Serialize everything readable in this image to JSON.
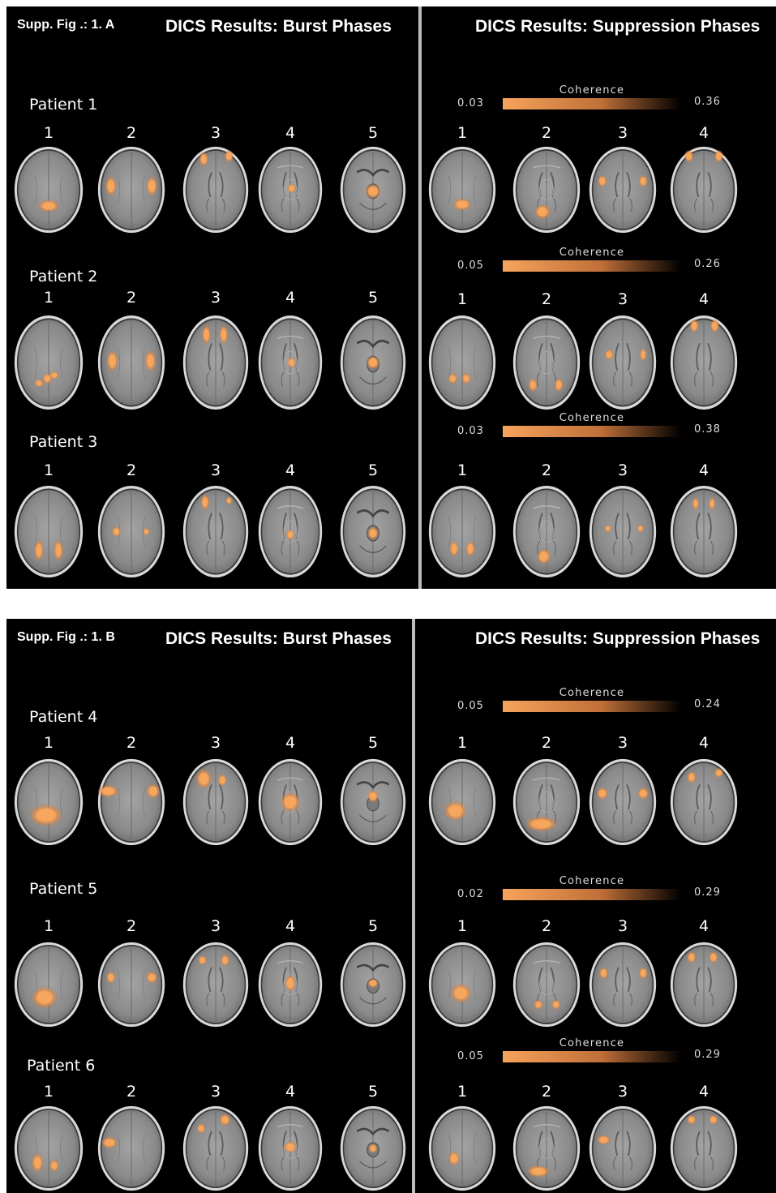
{
  "colors": {
    "accent_hot": "#f6a35c",
    "accent_dim": "#c07038",
    "brain_gray": "#8d8d8d"
  },
  "figures": [
    {
      "id": "fig-a",
      "label": "Supp. Fig .: 1. A",
      "burst_title": "DICS Results: Burst Phases",
      "suppression_title": "DICS Results: Suppression Phases",
      "burst": [
        {
          "patient": "Patient  1",
          "numbers": [
            "1",
            "2",
            "3",
            "4",
            "5"
          ]
        },
        {
          "patient": "Patient  2",
          "numbers": [
            "1",
            "2",
            "3",
            "4",
            "5"
          ]
        },
        {
          "patient": "Patient  3",
          "numbers": [
            "1",
            "2",
            "3",
            "4",
            "5"
          ]
        }
      ],
      "suppression": [
        {
          "colorbar_title": "Coherence",
          "cmin": "0.03",
          "cmax": "0.36",
          "numbers": [
            "1",
            "2",
            "3",
            "4"
          ]
        },
        {
          "colorbar_title": "Coherence",
          "cmin": "0.05",
          "cmax": "0.26",
          "numbers": [
            "1",
            "2",
            "3",
            "4"
          ]
        },
        {
          "colorbar_title": "Coherence",
          "cmin": "0.03",
          "cmax": "0.38",
          "numbers": [
            "1",
            "2",
            "3",
            "4"
          ]
        }
      ]
    },
    {
      "id": "fig-b",
      "label": "Supp. Fig .: 1. B",
      "burst_title": "DICS Results: Burst Phases",
      "suppression_title": "DICS Results: Suppression Phases",
      "burst": [
        {
          "patient": "Patient  4",
          "numbers": [
            "1",
            "2",
            "3",
            "4",
            "5"
          ]
        },
        {
          "patient": "Patient  5",
          "numbers": [
            "1",
            "2",
            "3",
            "4",
            "5"
          ]
        },
        {
          "patient": "Patient  6",
          "numbers": [
            "1",
            "2",
            "3",
            "4",
            "5"
          ]
        }
      ],
      "suppression": [
        {
          "colorbar_title": "Coherence",
          "cmin": "0.05",
          "cmax": "0.24",
          "numbers": [
            "1",
            "2",
            "3",
            "4"
          ]
        },
        {
          "colorbar_title": "Coherence",
          "cmin": "0.02",
          "cmax": "0.29",
          "numbers": [
            "1",
            "2",
            "3",
            "4"
          ]
        },
        {
          "colorbar_title": "Coherence",
          "cmin": "0.05",
          "cmax": "0.29",
          "numbers": [
            "1",
            "2",
            "3",
            "4"
          ]
        }
      ]
    }
  ]
}
